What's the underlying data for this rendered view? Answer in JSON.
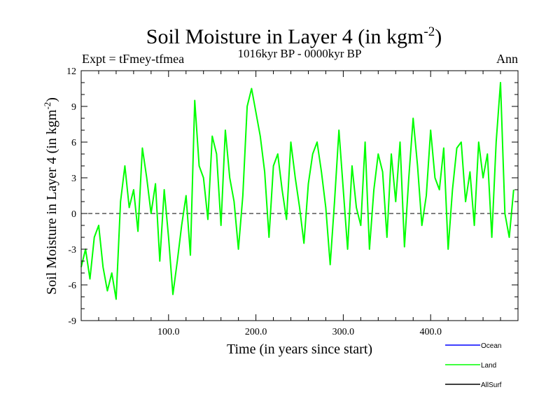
{
  "chart_data": {
    "type": "line",
    "title_main": "Soil Moisture in Layer 4 (in kgm",
    "title_sup": "-2",
    "title_close": ")",
    "subtitle": "1016kyr BP - 0000kyr BP",
    "left_label": "Expt = tFmey-tfmea",
    "right_label": "Ann",
    "xlabel": "Time (in years since start)",
    "ylabel_main": "Soil Moisture in Layer 4 (in kgm",
    "ylabel_sup": "-2",
    "ylabel_close": ")",
    "xlim": [
      0,
      500
    ],
    "ylim": [
      -9,
      12
    ],
    "xticks": [
      100,
      200,
      300,
      400
    ],
    "xtick_labels": [
      "100.0",
      "200.0",
      "300.0",
      "400.0"
    ],
    "yticks": [
      -9,
      -6,
      -3,
      0,
      3,
      6,
      9,
      12
    ],
    "ytick_labels": [
      "-9",
      "-6",
      "-3",
      "0",
      "3",
      "6",
      "9",
      "12"
    ],
    "zero_line": 0,
    "legend": [
      {
        "name": "Ocean",
        "color": "#0000ff"
      },
      {
        "name": "Land",
        "color": "#00ff00"
      },
      {
        "name": "AllSurf",
        "color": "#000000"
      }
    ],
    "series": [
      {
        "name": "Land",
        "color": "#00ff00",
        "x": [
          0,
          5,
          10,
          15,
          20,
          25,
          30,
          35,
          40,
          45,
          50,
          55,
          60,
          65,
          70,
          75,
          80,
          85,
          90,
          95,
          100,
          105,
          110,
          115,
          120,
          125,
          130,
          135,
          140,
          145,
          150,
          155,
          160,
          165,
          170,
          175,
          180,
          185,
          190,
          195,
          200,
          205,
          210,
          215,
          220,
          225,
          230,
          235,
          240,
          245,
          250,
          255,
          260,
          265,
          270,
          275,
          280,
          285,
          290,
          295,
          300,
          305,
          310,
          315,
          320,
          325,
          330,
          335,
          340,
          345,
          350,
          355,
          360,
          365,
          370,
          375,
          380,
          385,
          390,
          395,
          400,
          405,
          410,
          415,
          420,
          425,
          430,
          435,
          440,
          445,
          450,
          455,
          460,
          465,
          470,
          475,
          480,
          485,
          490,
          495
        ],
        "values": [
          -4.5,
          -3,
          -5.5,
          -2,
          -1,
          -4.5,
          -6.5,
          -5,
          -7.2,
          1,
          4,
          0.5,
          2,
          -1.5,
          5.5,
          3,
          0,
          2.5,
          -4,
          2,
          -2,
          -6.8,
          -4,
          -1,
          1.5,
          -3.5,
          9.5,
          4,
          3,
          -0.5,
          6.5,
          5,
          -1,
          7,
          3,
          1,
          -3,
          1.5,
          9,
          10.5,
          8.5,
          6.5,
          3.5,
          -2,
          4,
          5,
          2,
          -0.5,
          6,
          3,
          0.5,
          -2.5,
          2.5,
          5,
          6,
          3.5,
          0.5,
          -4.3,
          1,
          7,
          2,
          -3,
          4,
          0.5,
          -1,
          6,
          -3,
          2,
          5,
          3.5,
          -2,
          5,
          1,
          6,
          -2.8,
          3,
          8,
          4,
          -1,
          1.5,
          7,
          3,
          2,
          5.5,
          -3,
          2,
          5.5,
          6,
          1,
          3.5,
          -1,
          6,
          3,
          5,
          -2,
          6,
          11,
          0,
          -2,
          2
        ]
      }
    ]
  }
}
